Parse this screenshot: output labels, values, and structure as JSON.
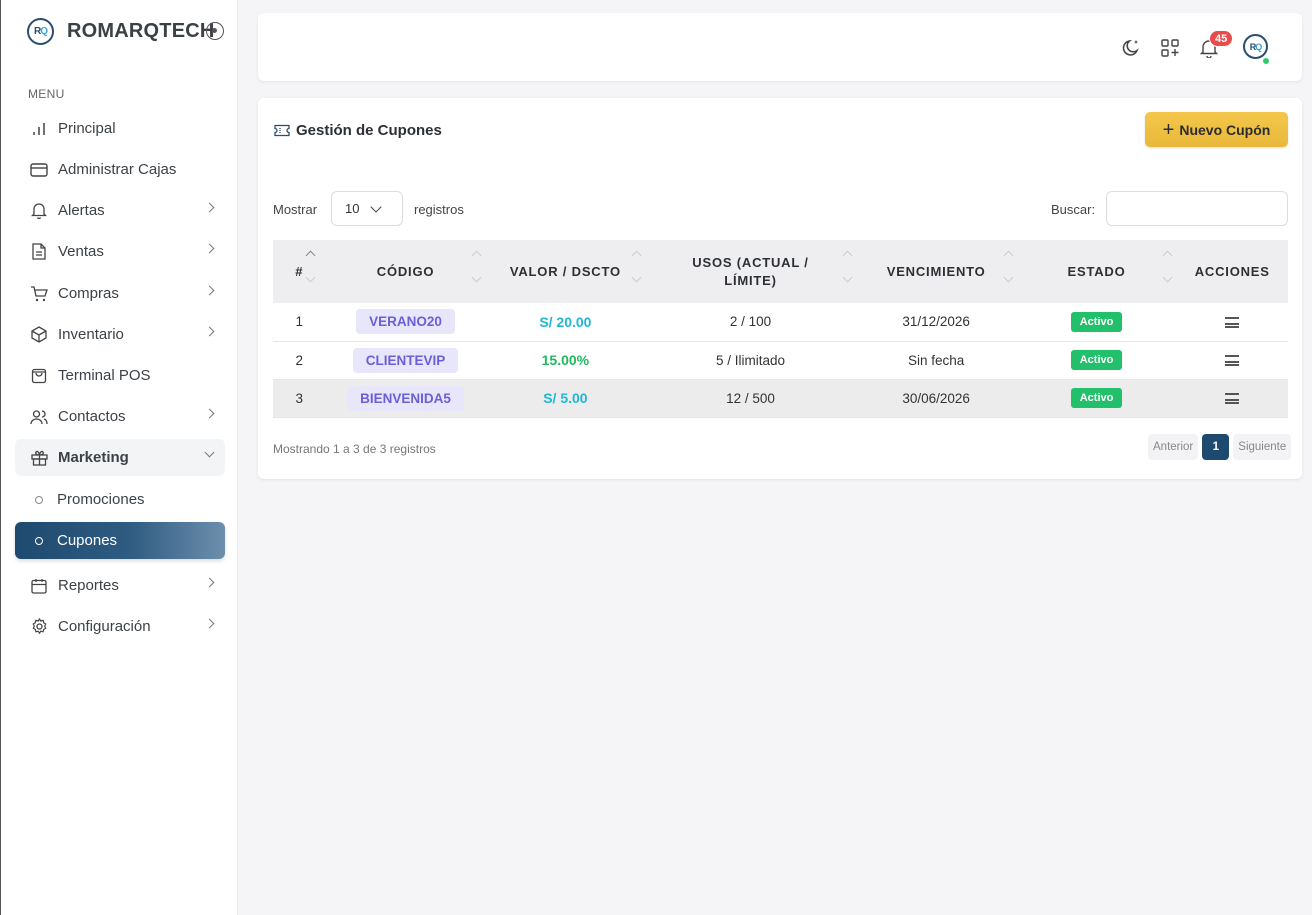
{
  "brand": {
    "logo_text": "RQ",
    "name": "ROMARQTECH"
  },
  "menu": {
    "heading": "MENU",
    "items": [
      {
        "label": "Principal"
      },
      {
        "label": "Administrar Cajas"
      },
      {
        "label": "Alertas"
      },
      {
        "label": "Ventas"
      },
      {
        "label": "Compras"
      },
      {
        "label": "Inventario"
      },
      {
        "label": "Terminal POS"
      },
      {
        "label": "Contactos"
      },
      {
        "label": "Marketing"
      },
      {
        "label": "Promociones"
      },
      {
        "label": "Cupones"
      },
      {
        "label": "Reportes"
      },
      {
        "label": "Configuración"
      }
    ]
  },
  "header": {
    "notification_count": "45",
    "avatar_text": "RQ"
  },
  "card": {
    "title": "Gestión de Cupones",
    "new_button": "Nuevo Cupón",
    "show_label": "Mostrar",
    "page_length": "10",
    "records_label": "registros",
    "search_label": "Buscar:",
    "search_value": ""
  },
  "table": {
    "columns": [
      "#",
      "CÓDIGO",
      "VALOR / DSCTO",
      "USOS (ACTUAL / LÍMITE)",
      "VENCIMIENTO",
      "ESTADO",
      "ACCIONES"
    ],
    "rows": [
      {
        "num": "1",
        "code": "VERANO20",
        "value": "S/ 20.00",
        "usage": "2 / 100",
        "expiry": "31/12/2026",
        "status": "Activo"
      },
      {
        "num": "2",
        "code": "CLIENTEVIP",
        "value": "15.00%",
        "usage": "5 / Ilimitado",
        "expiry": "Sin fecha",
        "status": "Activo"
      },
      {
        "num": "3",
        "code": "BIENVENIDA5",
        "value": "S/ 5.00",
        "usage": "12 / 500",
        "expiry": "30/06/2026",
        "status": "Activo"
      }
    ]
  },
  "footer": {
    "info": "Mostrando 1 a 3 de 3 registros",
    "prev": "Anterior",
    "current_page": "1",
    "next": "Siguiente"
  },
  "colors": {
    "accent": "#1f4a70",
    "fixed_value": "#1fb8d3",
    "percent_value": "#22b860",
    "status_active": "#22c06a",
    "badge": "#e94b4b",
    "new_button": "#f0c24a"
  }
}
